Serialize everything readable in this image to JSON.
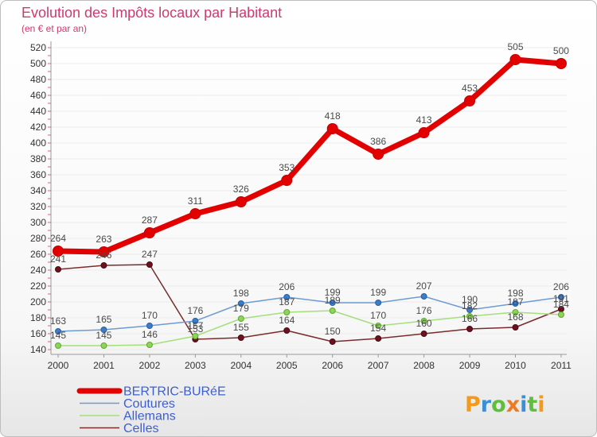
{
  "chart_data": {
    "type": "line",
    "title": "Evolution des Impôts locaux par Habitant",
    "subtitle": "(en € et par an)",
    "xlabel": "",
    "ylabel": "",
    "categories": [
      "2000",
      "2001",
      "2002",
      "2003",
      "2004",
      "2005",
      "2006",
      "2007",
      "2008",
      "2009",
      "2010",
      "2011"
    ],
    "ylim": [
      140,
      520
    ],
    "yticks": [
      140,
      160,
      180,
      200,
      220,
      240,
      260,
      280,
      300,
      320,
      340,
      360,
      380,
      400,
      420,
      440,
      460,
      480,
      500,
      520
    ],
    "grid": true,
    "legend": "bottom-left",
    "series": [
      {
        "name": "BERTRIC-BURéE",
        "color": "#e30000",
        "marker_color": "#e30000",
        "marker_stroke": "#c20000",
        "values": [
          264,
          263,
          287,
          311,
          326,
          353,
          418,
          386,
          413,
          453,
          505,
          500
        ]
      },
      {
        "name": "Coutures",
        "color": "#6c9bd2",
        "marker_color": "#3d7cc9",
        "marker_stroke": "#2a5fa0",
        "values": [
          163,
          165,
          170,
          176,
          198,
          206,
          199,
          199,
          207,
          190,
          198,
          206
        ]
      },
      {
        "name": "Allemans",
        "color": "#a3df7a",
        "marker_color": "#8fd45a",
        "marker_stroke": "#5ea92e",
        "values": [
          145,
          145,
          146,
          157,
          179,
          187,
          189,
          170,
          176,
          182,
          187,
          184
        ]
      },
      {
        "name": "Celles",
        "color": "#7a2b2b",
        "marker_color": "#6e1020",
        "marker_stroke": "#4a0a14",
        "values": [
          241,
          246,
          247,
          153,
          155,
          164,
          150,
          154,
          160,
          166,
          168,
          191
        ]
      }
    ]
  },
  "colors": {
    "title": "#cc3a6e",
    "legend_text": "#3c5fd0",
    "axis_text": "#333333"
  },
  "logo": {
    "text": "Proxiti",
    "letter_colors": [
      "#f39a1b",
      "#3a8fd8",
      "#5fbf3a",
      "#f07a1e",
      "#3a8fd8",
      "#5fbf3a",
      "#f39a1b"
    ]
  }
}
